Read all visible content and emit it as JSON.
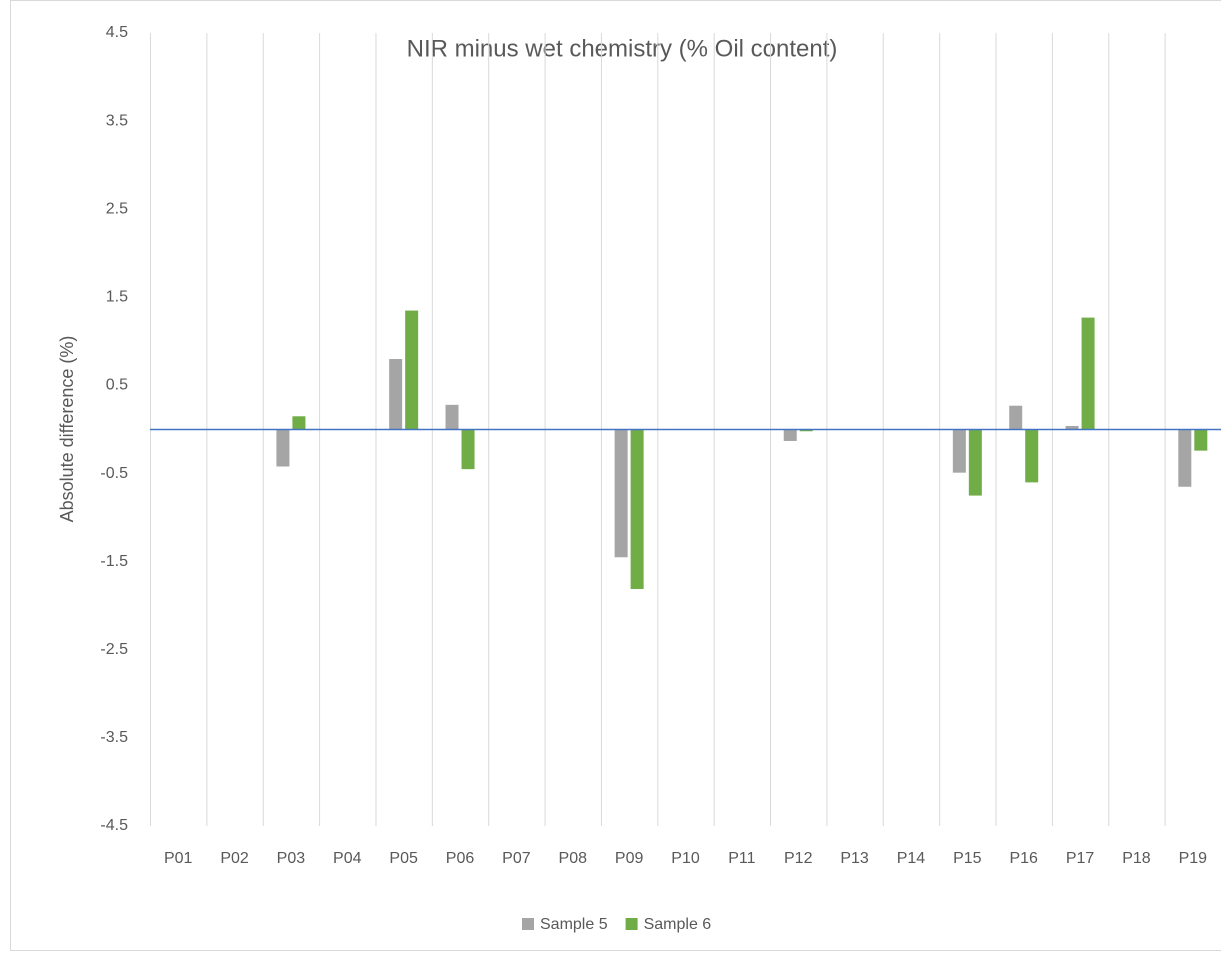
{
  "chart_data": {
    "type": "bar",
    "title": "NIR minus wet chemistry (% Oil content)",
    "y_label": "Absolute difference (%)",
    "categories": [
      "P01",
      "P02",
      "P03",
      "P04",
      "P05",
      "P06",
      "P07",
      "P08",
      "P09",
      "P10",
      "P11",
      "P12",
      "P13",
      "P14",
      "P15",
      "P16",
      "P17",
      "P18",
      "P19"
    ],
    "series": [
      {
        "name": "Sample 5",
        "color": "#a5a5a5",
        "values": [
          null,
          null,
          -0.42,
          null,
          0.8,
          0.28,
          null,
          null,
          -1.45,
          null,
          null,
          -0.13,
          null,
          null,
          -0.49,
          0.27,
          0.04,
          null,
          -0.65
        ]
      },
      {
        "name": "Sample 6",
        "color": "#70ad47",
        "values": [
          null,
          null,
          0.15,
          null,
          1.35,
          -0.45,
          null,
          null,
          -1.81,
          null,
          null,
          -0.02,
          null,
          null,
          -0.75,
          -0.6,
          1.27,
          null,
          -0.24
        ]
      }
    ],
    "ylim": [
      -4.5,
      4.5
    ],
    "yticks": [
      -4.5,
      -3.5,
      -2.5,
      -1.5,
      -0.5,
      0.5,
      1.5,
      2.5,
      3.5,
      4.5
    ],
    "grid": true,
    "legend": "bottom"
  }
}
